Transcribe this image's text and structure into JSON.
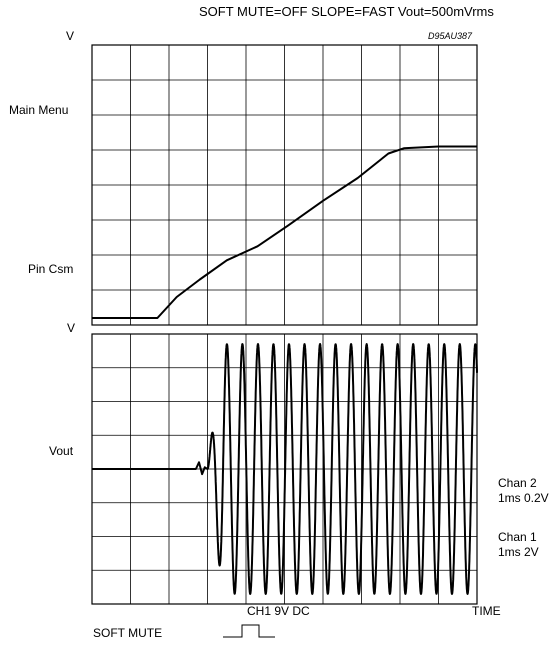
{
  "title": "SOFT MUTE=OFF SLOPE=FAST Vout=500mVrms",
  "figure_code": "D95AU387",
  "chart_data": [
    {
      "type": "line",
      "panel": "top",
      "y_axis_unit": "V",
      "y_labels": [
        "Main Menu",
        "Pin Csm"
      ],
      "grid": true,
      "grid_divisions": {
        "x": 10,
        "y": 8
      },
      "series": [
        {
          "x": [
            0,
            1.0,
            1.7,
            2.2,
            2.8,
            3.5,
            4.3,
            5.1,
            6.0,
            6.9,
            7.7,
            8.1,
            9.0,
            10
          ],
          "y": [
            0.2,
            0.2,
            0.2,
            0.8,
            1.3,
            1.85,
            2.25,
            2.85,
            3.55,
            4.2,
            4.9,
            5.05,
            5.1,
            5.1
          ]
        }
      ]
    },
    {
      "type": "line",
      "panel": "bottom",
      "y_axis_unit": "V",
      "y_labels": [
        "Vout"
      ],
      "grid": true,
      "grid_divisions": {
        "x": 10,
        "y": 8
      },
      "burst_start_x": 3.0,
      "cycles_per_division": 2.48,
      "amplitude_divisions": 3.7,
      "series": [
        {
          "x": [
            0,
            2.7,
            2.78,
            2.86,
            2.93,
            3.0
          ],
          "y": [
            0,
            0,
            0.2,
            -0.15,
            0.05,
            0
          ]
        }
      ]
    }
  ],
  "right_labels": {
    "chan2": [
      "Chan 2",
      "1ms 0.2V"
    ],
    "chan1": [
      "Chan 1",
      "1ms 2V"
    ]
  },
  "bottom": {
    "ch1_label": "CH1 9V DC",
    "time_label": "TIME",
    "soft_mute_label": "SOFT MUTE"
  }
}
